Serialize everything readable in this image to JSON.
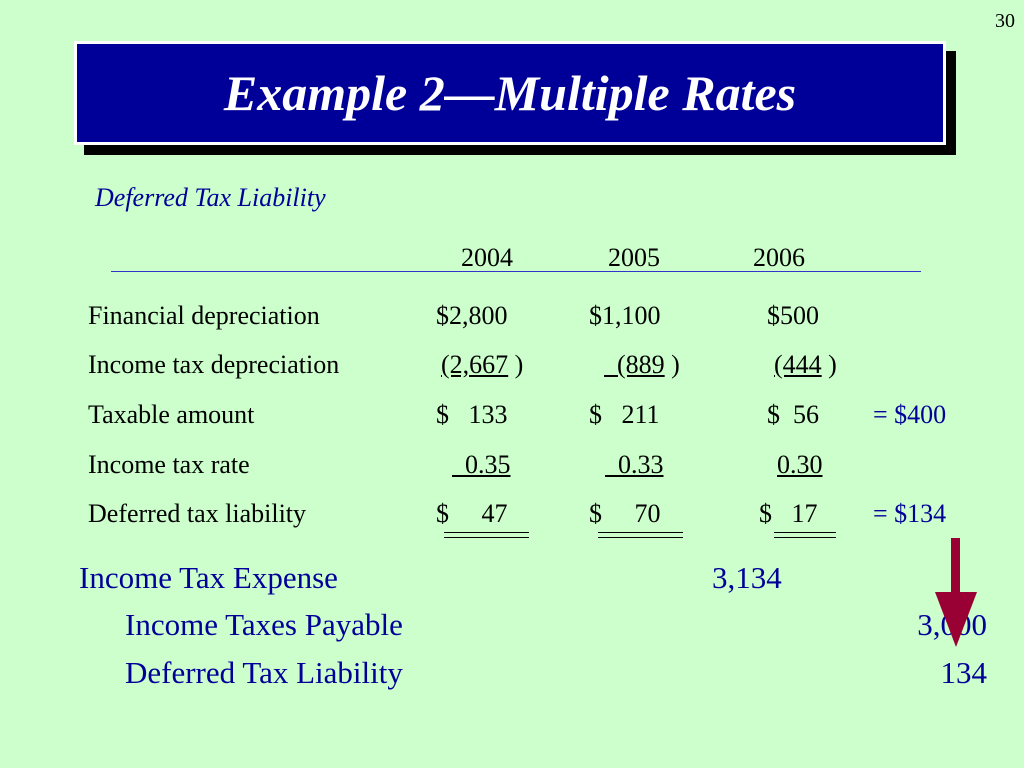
{
  "page_number": "30",
  "title": "Example 2—Multiple Rates",
  "subtitle": "Deferred Tax Liability",
  "years": [
    "2004",
    "2005",
    "2006"
  ],
  "rows": [
    {
      "label": "Financial depreciation",
      "values": [
        "$2,800",
        "$1,100",
        "$500"
      ],
      "total": ""
    },
    {
      "label": "Income tax depreciation",
      "values": [
        "(2,667",
        "(889",
        "(444"
      ],
      "total": ""
    },
    {
      "label": "Taxable amount",
      "values": [
        "$   133",
        "$   211",
        "$  56"
      ],
      "total": "= $400"
    },
    {
      "label": "Income tax rate",
      "values": [
        "0.35",
        "0.33",
        "0.30"
      ],
      "total": ""
    },
    {
      "label": "Deferred tax liability",
      "values": [
        "$     47",
        "$     70",
        "$   17"
      ],
      "total": "= $134"
    }
  ],
  "journal_entry": {
    "debit": {
      "account": "Income Tax Expense",
      "amount": "3,134"
    },
    "credits": [
      {
        "account": "Income Taxes Payable",
        "amount": "3,000"
      },
      {
        "account": "Deferred Tax Liability",
        "amount": "134"
      }
    ]
  },
  "colors": {
    "background": "#ccffcc",
    "title_box": "#000099",
    "accent_text": "#000099",
    "arrow": "#990033"
  }
}
